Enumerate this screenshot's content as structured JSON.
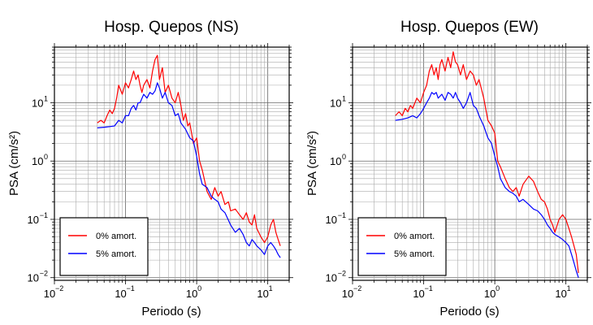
{
  "chart_data": [
    {
      "type": "line",
      "title": "Hosp. Quepos (NS)",
      "xlabel": "Periodo (s)",
      "ylabel": "PSA (cm/s²)",
      "xscale": "log",
      "yscale": "log",
      "xlim": [
        0.01,
        20
      ],
      "ylim": [
        0.009,
        90
      ],
      "xticks": [
        {
          "base": "10",
          "exp": "−2"
        },
        {
          "base": "10",
          "exp": "−1"
        },
        {
          "base": "10",
          "exp": "0"
        },
        {
          "base": "10",
          "exp": "1"
        }
      ],
      "yticks": [
        {
          "base": "10",
          "exp": "−2"
        },
        {
          "base": "10",
          "exp": "−1"
        },
        {
          "base": "10",
          "exp": "0"
        },
        {
          "base": "10",
          "exp": "1"
        }
      ],
      "grid": true,
      "legend_position": "bottom-left",
      "series": [
        {
          "name": "0% amort.",
          "color": "#ff0000",
          "x": [
            0.04,
            0.045,
            0.05,
            0.055,
            0.06,
            0.065,
            0.07,
            0.075,
            0.08,
            0.09,
            0.1,
            0.11,
            0.12,
            0.13,
            0.14,
            0.15,
            0.16,
            0.17,
            0.18,
            0.2,
            0.22,
            0.24,
            0.26,
            0.28,
            0.3,
            0.33,
            0.36,
            0.4,
            0.45,
            0.5,
            0.55,
            0.6,
            0.65,
            0.7,
            0.75,
            0.8,
            0.9,
            1.0,
            1.1,
            1.2,
            1.4,
            1.6,
            1.8,
            2.0,
            2.2,
            2.5,
            2.8,
            3.0,
            3.5,
            4.0,
            4.5,
            5.0,
            5.5,
            6.0,
            6.5,
            7.0,
            8.0,
            9.0,
            10.0,
            11.0,
            12.0,
            13.0,
            14.0,
            15.0
          ],
          "y": [
            4.5,
            5.0,
            4.5,
            6.0,
            7.5,
            6.5,
            8.0,
            12.0,
            20.0,
            14.0,
            22.0,
            18.0,
            25.0,
            35.0,
            25.0,
            30.0,
            20.0,
            15.0,
            20.0,
            25.0,
            18.0,
            35.0,
            55.0,
            65.0,
            25.0,
            40.0,
            15.0,
            20.0,
            12.0,
            10.0,
            15.0,
            9.0,
            5.0,
            6.5,
            4.0,
            4.5,
            2.0,
            2.5,
            1.0,
            0.7,
            0.3,
            0.22,
            0.35,
            0.25,
            0.3,
            0.18,
            0.2,
            0.14,
            0.15,
            0.12,
            0.1,
            0.13,
            0.09,
            0.08,
            0.12,
            0.07,
            0.05,
            0.04,
            0.05,
            0.08,
            0.1,
            0.06,
            0.045,
            0.035
          ]
        },
        {
          "name": "5% amort.",
          "color": "#0000ff",
          "x": [
            0.04,
            0.05,
            0.06,
            0.07,
            0.08,
            0.09,
            0.1,
            0.11,
            0.12,
            0.13,
            0.14,
            0.15,
            0.16,
            0.18,
            0.2,
            0.22,
            0.24,
            0.26,
            0.28,
            0.3,
            0.33,
            0.36,
            0.4,
            0.45,
            0.5,
            0.55,
            0.6,
            0.7,
            0.8,
            0.9,
            1.0,
            1.1,
            1.2,
            1.4,
            1.6,
            1.8,
            2.0,
            2.2,
            2.5,
            3.0,
            3.5,
            4.0,
            4.5,
            5.0,
            5.5,
            6.0,
            6.5,
            7.0,
            8.0,
            9.0,
            10.0,
            11.0,
            12.0,
            13.0,
            14.0,
            15.0
          ],
          "y": [
            3.7,
            3.8,
            3.9,
            4.0,
            5.0,
            4.5,
            6.0,
            6.0,
            8.0,
            9.0,
            7.5,
            10.0,
            10.0,
            14.0,
            12.0,
            15.0,
            14.0,
            16.0,
            22.0,
            18.0,
            12.0,
            15.0,
            10.0,
            9.0,
            6.0,
            6.5,
            4.5,
            3.5,
            2.5,
            2.2,
            1.2,
            0.6,
            0.4,
            0.35,
            0.25,
            0.22,
            0.2,
            0.15,
            0.13,
            0.08,
            0.06,
            0.07,
            0.055,
            0.04,
            0.035,
            0.045,
            0.04,
            0.035,
            0.03,
            0.025,
            0.035,
            0.04,
            0.035,
            0.03,
            0.025,
            0.022
          ]
        }
      ]
    },
    {
      "type": "line",
      "title": "Hosp. Quepos (EW)",
      "xlabel": "Periodo (s)",
      "ylabel": "PSA (cm/s²)",
      "xscale": "log",
      "yscale": "log",
      "xlim": [
        0.01,
        20
      ],
      "ylim": [
        0.009,
        90
      ],
      "xticks": [
        {
          "base": "10",
          "exp": "−2"
        },
        {
          "base": "10",
          "exp": "−1"
        },
        {
          "base": "10",
          "exp": "0"
        },
        {
          "base": "10",
          "exp": "1"
        }
      ],
      "yticks": [
        {
          "base": "10",
          "exp": "−2"
        },
        {
          "base": "10",
          "exp": "−1"
        },
        {
          "base": "10",
          "exp": "0"
        },
        {
          "base": "10",
          "exp": "1"
        }
      ],
      "grid": true,
      "legend_position": "bottom-left",
      "series": [
        {
          "name": "0% amort.",
          "color": "#ff0000",
          "x": [
            0.04,
            0.045,
            0.05,
            0.055,
            0.06,
            0.065,
            0.07,
            0.08,
            0.09,
            0.1,
            0.11,
            0.12,
            0.13,
            0.14,
            0.15,
            0.16,
            0.17,
            0.18,
            0.2,
            0.22,
            0.24,
            0.26,
            0.28,
            0.3,
            0.33,
            0.36,
            0.4,
            0.45,
            0.5,
            0.55,
            0.6,
            0.7,
            0.8,
            0.9,
            1.0,
            1.1,
            1.2,
            1.4,
            1.6,
            1.8,
            2.0,
            2.2,
            2.5,
            3.0,
            3.5,
            4.0,
            4.5,
            5.0,
            5.5,
            6.0,
            6.5,
            7.0,
            8.0,
            9.0,
            10.0,
            11.0,
            12.0,
            13.0,
            14.0,
            15.0
          ],
          "y": [
            6.0,
            7.0,
            6.0,
            8.0,
            7.0,
            9.0,
            8.0,
            12.0,
            10.0,
            15.0,
            20.0,
            35.0,
            45.0,
            30.0,
            40.0,
            25.0,
            45.0,
            55.0,
            35.0,
            60.0,
            40.0,
            75.0,
            50.0,
            45.0,
            30.0,
            45.0,
            25.0,
            35.0,
            30.0,
            20.0,
            25.0,
            12.0,
            5.0,
            4.0,
            3.0,
            1.0,
            0.8,
            0.5,
            0.35,
            0.3,
            0.35,
            0.25,
            0.4,
            0.55,
            0.45,
            0.3,
            0.22,
            0.2,
            0.15,
            0.1,
            0.08,
            0.06,
            0.1,
            0.12,
            0.1,
            0.07,
            0.05,
            0.035,
            0.025,
            0.012
          ]
        },
        {
          "name": "5% amort.",
          "color": "#0000ff",
          "x": [
            0.04,
            0.05,
            0.06,
            0.07,
            0.08,
            0.09,
            0.1,
            0.11,
            0.12,
            0.13,
            0.14,
            0.15,
            0.16,
            0.18,
            0.2,
            0.22,
            0.24,
            0.26,
            0.28,
            0.3,
            0.33,
            0.36,
            0.4,
            0.45,
            0.5,
            0.55,
            0.6,
            0.7,
            0.8,
            0.9,
            1.0,
            1.1,
            1.2,
            1.4,
            1.6,
            1.8,
            2.0,
            2.2,
            2.5,
            3.0,
            3.5,
            4.0,
            4.5,
            5.0,
            5.5,
            6.0,
            6.5,
            7.0,
            8.0,
            9.0,
            10.0,
            11.0,
            12.0,
            13.0,
            14.0,
            15.0
          ],
          "y": [
            5.0,
            5.2,
            5.5,
            6.0,
            5.5,
            6.5,
            8.0,
            10.0,
            12.0,
            15.0,
            14.0,
            15.0,
            12.0,
            14.0,
            11.0,
            15.0,
            14.0,
            12.0,
            15.0,
            12.0,
            10.0,
            8.0,
            10.0,
            15.0,
            9.0,
            8.0,
            6.0,
            4.0,
            2.5,
            2.0,
            1.2,
            0.8,
            0.5,
            0.35,
            0.3,
            0.28,
            0.25,
            0.2,
            0.22,
            0.18,
            0.15,
            0.14,
            0.12,
            0.1,
            0.08,
            0.07,
            0.06,
            0.055,
            0.05,
            0.045,
            0.04,
            0.035,
            0.025,
            0.018,
            0.013,
            0.01
          ]
        }
      ]
    }
  ]
}
